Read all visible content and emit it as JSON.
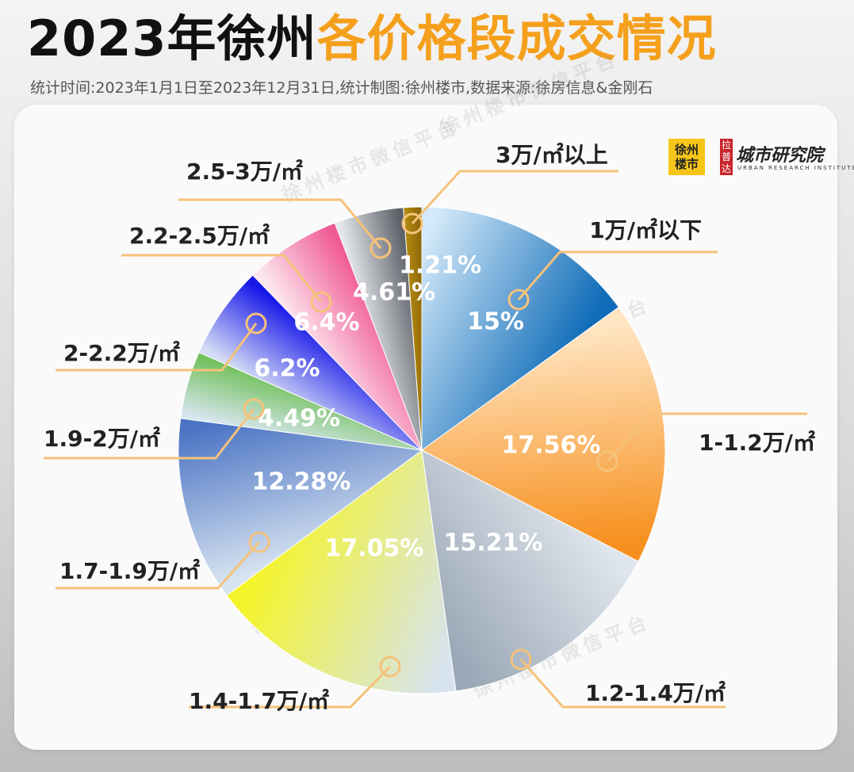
{
  "header": {
    "title_black": "2023年徐州",
    "title_orange": "各价格段成交情况",
    "subtitle": "统计时间:2023年1月1日至2023年12月31日,统计制图:徐州楼市,数据来源:徐房信息&金刚石"
  },
  "logos": {
    "logo1_line1": "徐州",
    "logo1_line2": "楼市",
    "logo2_badge": [
      "拉",
      "普",
      "达"
    ],
    "logo2_name": "城市研究院",
    "logo2_sub": "URBAN RESEARCH INSTITUTE"
  },
  "watermark": "徐州楼市微信平台",
  "colors": {
    "title_orange": "#f5a01d",
    "leader_line": "#f5c27a"
  },
  "chart_data": {
    "type": "pie",
    "title": "2023年徐州各价格段成交情况",
    "series": [
      {
        "category": "1万/㎡以下",
        "value": 15,
        "label": "15%",
        "color_start": "#d4e9f9",
        "color_end": "#0f6cb8"
      },
      {
        "category": "1-1.2万/㎡",
        "value": 17.56,
        "label": "17.56%",
        "color_start": "#ffe5c2",
        "color_end": "#f7901e"
      },
      {
        "category": "1.2-1.4万/㎡",
        "value": 15.21,
        "label": "15.21%",
        "color_start": "#dfe5ec",
        "color_end": "#9aa7b6"
      },
      {
        "category": "1.4-1.7万/㎡",
        "value": 17.05,
        "label": "17.05%",
        "color_start": "#d7e3f0",
        "color_end": "#f4f42a"
      },
      {
        "category": "1.7-1.9万/㎡",
        "value": 12.28,
        "label": "12.28%",
        "color_start": "#d7e3f0",
        "color_end": "#4b74c4"
      },
      {
        "category": "1.9-2万/㎡",
        "value": 4.49,
        "label": "4.49%",
        "color_start": "#d8e6ef",
        "color_end": "#74c15f"
      },
      {
        "category": "2-2.2万/㎡",
        "value": 6.2,
        "label": "6.2%",
        "color_start": "#d4dcf6",
        "color_end": "#1717e8"
      },
      {
        "category": "2.2-2.5万/㎡",
        "value": 6.4,
        "label": "6.4%",
        "color_start": "#fde8f0",
        "color_end": "#f05a94"
      },
      {
        "category": "2.5-3万/㎡",
        "value": 4.61,
        "label": "4.61%",
        "color_start": "#e3e6ea",
        "color_end": "#5b5f66"
      },
      {
        "category": "3万/㎡以上",
        "value": 1.21,
        "label": "1.21%",
        "color_start": "#b58a10",
        "color_end": "#8a6508"
      }
    ],
    "start_angle_deg": 0,
    "direction": "clockwise",
    "legend": "leader-line labels around pie"
  }
}
